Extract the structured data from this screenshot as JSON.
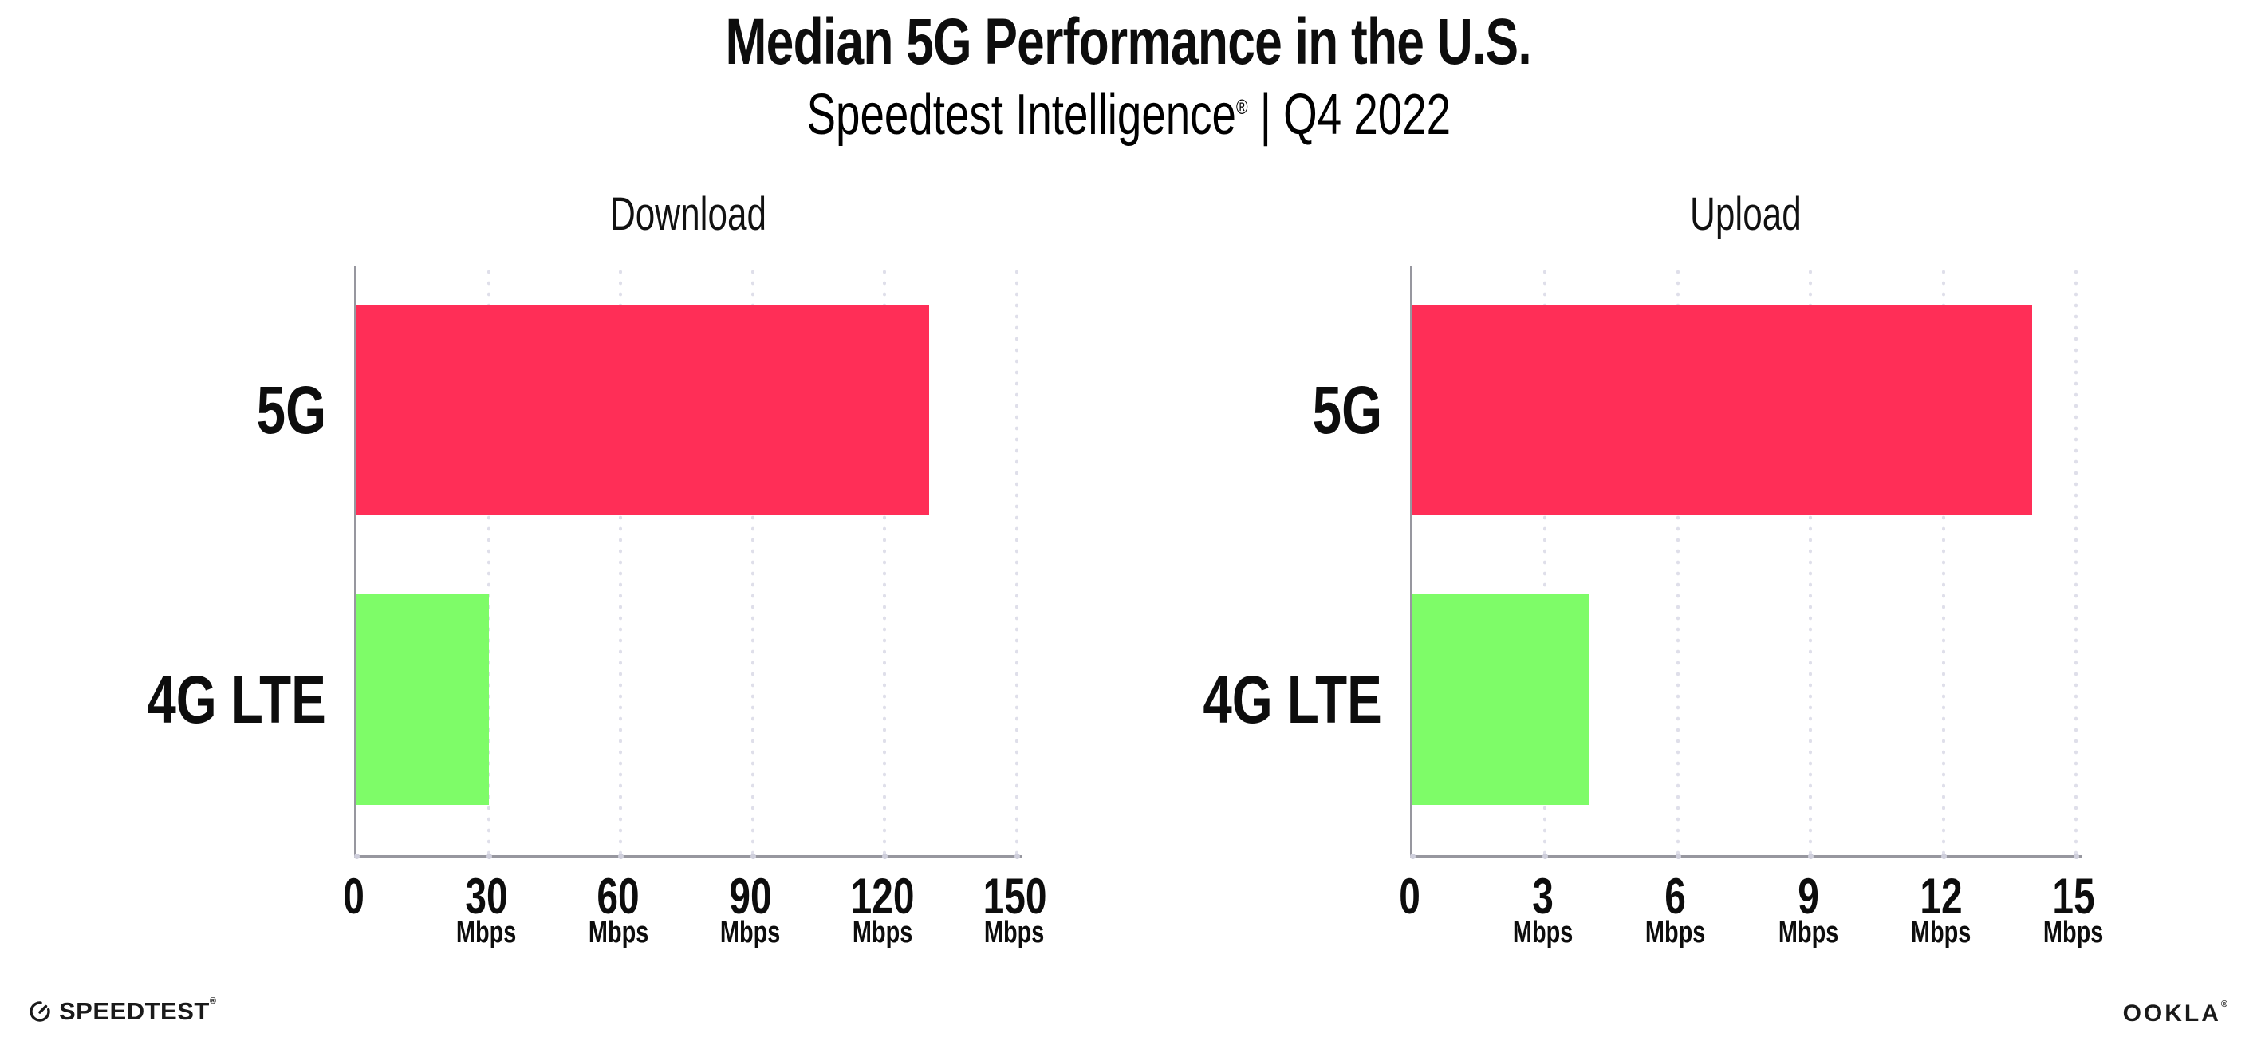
{
  "header": {
    "title": "Median 5G Performance in the U.S.",
    "subtitle_brand": "Speedtest Intelligence",
    "subtitle_reg": "®",
    "subtitle_rest": " | Q4 2022"
  },
  "chart_data": [
    {
      "type": "bar",
      "orientation": "horizontal",
      "title": "Download",
      "categories": [
        "5G",
        "4G LTE"
      ],
      "values": [
        130,
        30
      ],
      "unit": "Mbps",
      "xlim": [
        0,
        150
      ],
      "ticks": [
        0,
        30,
        60,
        90,
        120,
        150
      ],
      "tick_unit_label": "Mbps",
      "bar_colors": [
        "#FF2E57",
        "#7EFC68"
      ],
      "grid": "dotted-vertical",
      "legend": "none"
    },
    {
      "type": "bar",
      "orientation": "horizontal",
      "title": "Upload",
      "categories": [
        "5G",
        "4G LTE"
      ],
      "values": [
        14,
        4
      ],
      "unit": "Mbps",
      "xlim": [
        0,
        15
      ],
      "ticks": [
        0,
        3,
        6,
        9,
        12,
        15
      ],
      "tick_unit_label": "Mbps",
      "bar_colors": [
        "#FF2E57",
        "#7EFC68"
      ],
      "grid": "dotted-vertical",
      "legend": "none"
    }
  ],
  "footer": {
    "speedtest_label": "SPEEDTEST",
    "speedtest_reg": "®",
    "ookla_label": "OOKLA",
    "ookla_reg": "®"
  },
  "colors": {
    "bar_5g": "#FF2E57",
    "bar_4g_lte": "#7EFC68",
    "axis": "#97979f",
    "gridline": "#dfdfea",
    "text": "#0d0d0d"
  }
}
